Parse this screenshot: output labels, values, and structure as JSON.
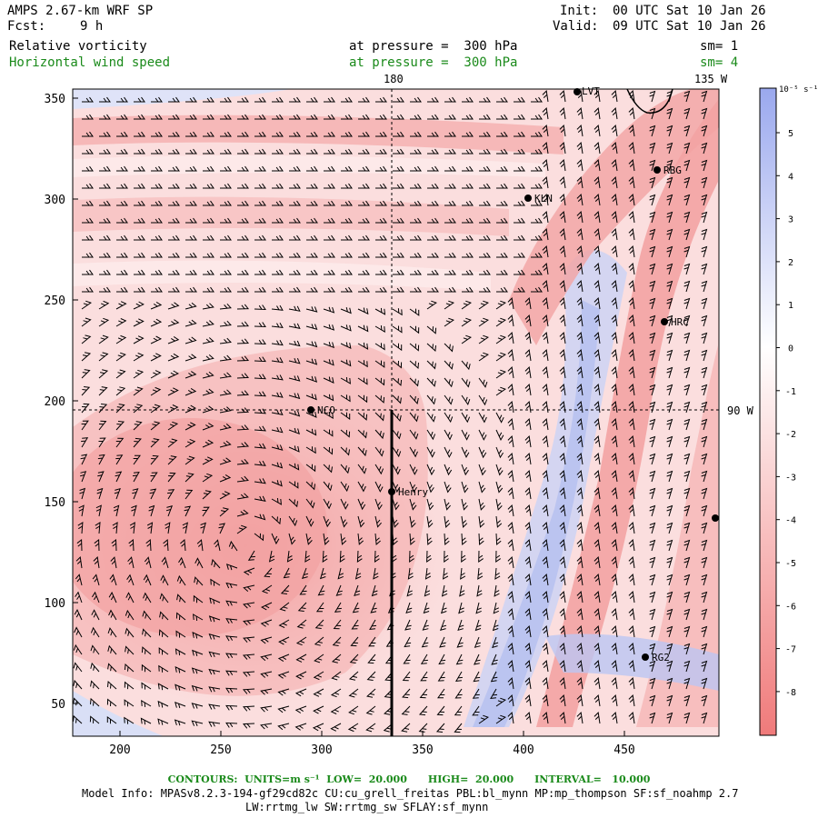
{
  "header": {
    "model_title": "AMPS 2.67-km WRF SP",
    "forecast_label": "Fcst:",
    "forecast_value": "9 h",
    "init_label": "Init:",
    "init_value": "00 UTC Sat 10 Jan 26",
    "valid_label": "Valid:",
    "valid_value": "09 UTC Sat 10 Jan 26",
    "field1_name": "Relative vorticity",
    "field1_level": "at pressure =  300 hPa",
    "field1_smooth": "sm= 1",
    "field2_name": "Horizontal wind speed",
    "field2_level": "at pressure =  300 hPa",
    "field2_smooth": "sm= 4"
  },
  "map": {
    "x_ticks": [
      "200",
      "250",
      "300",
      "350",
      "400",
      "450"
    ],
    "y_ticks": [
      "50",
      "100",
      "150",
      "200",
      "250",
      "300",
      "350"
    ],
    "lon_label_top_1": "180",
    "lon_label_top_2": "135 W",
    "lat_label_right": "90 W",
    "stations": [
      {
        "id": "stn-lvt",
        "label": "LVT"
      },
      {
        "id": "stn-rbg",
        "label": "RBG"
      },
      {
        "id": "stn-kln",
        "label": "KLN"
      },
      {
        "id": "stn-hrc",
        "label": "HRC"
      },
      {
        "id": "stn-nco",
        "label": "NCO"
      },
      {
        "id": "stn-henry",
        "label": "Henry"
      },
      {
        "id": "stn-rg2",
        "label": "RG2"
      }
    ],
    "colorbar": {
      "units": "10⁻⁵ s⁻¹",
      "labels": [
        "5",
        "4",
        "3",
        "2",
        "1",
        "0",
        "-1",
        "-2",
        "-3",
        "-4",
        "-5",
        "-6",
        "-7",
        "-8"
      ],
      "positive_color": "#9aa8ee",
      "negative_color": "#f08a8a"
    }
  },
  "footer": {
    "contours": "CONTOURS:  UNITS=m s⁻¹  LOW=  20.000      HIGH=  20.000      INTERVAL=   10.000",
    "model_info": "Model Info: MPASv8.2.3-194-gf29cd82c CU:cu_grell_freitas PBL:bl_mynn MP:mp_thompson SF:sf_noahmp 2.7",
    "model_info_2": "LW:rrtmg_lw SW:rrtmg_sw SFLAY:sf_mynn"
  }
}
